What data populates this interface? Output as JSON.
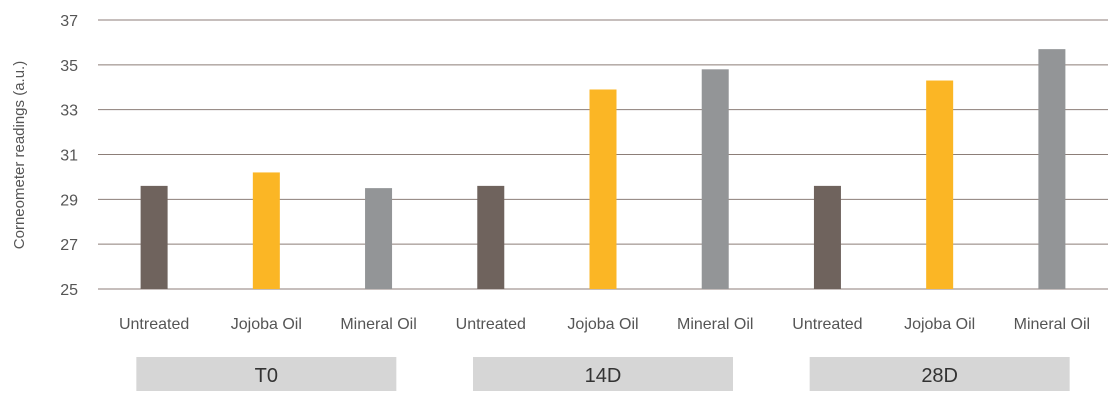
{
  "chart_data": {
    "type": "bar",
    "ylabel": "Corneometer readings (a.u.)",
    "ylim": [
      25,
      37
    ],
    "yticks": [
      25,
      27,
      29,
      31,
      33,
      35,
      37
    ],
    "grid": true,
    "groups": [
      {
        "label": "T0",
        "categories": [
          "Untreated",
          "Jojoba Oil",
          "Mineral Oil"
        ],
        "values": [
          29.6,
          30.2,
          29.5
        ]
      },
      {
        "label": "14D",
        "categories": [
          "Untreated",
          "Jojoba Oil",
          "Mineral Oil"
        ],
        "values": [
          29.6,
          33.9,
          34.8
        ]
      },
      {
        "label": "28D",
        "categories": [
          "Untreated",
          "Jojoba Oil",
          "Mineral Oil"
        ],
        "values": [
          29.6,
          34.3,
          35.7
        ]
      }
    ],
    "colors": [
      "#6f635d",
      "#fbb625",
      "#939597"
    ],
    "group_box_color": "#d6d6d6",
    "grid_color": "#8c7e78"
  }
}
